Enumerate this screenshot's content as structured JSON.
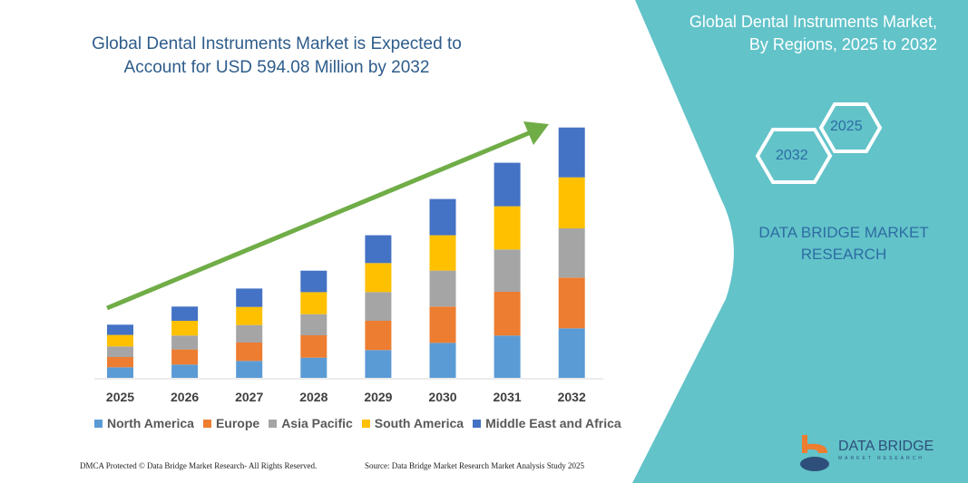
{
  "title": "Global Dental Instruments Market is Expected to Account for USD 594.08 Million by 2032",
  "side_panel": {
    "title_line1": "Global Dental Instruments Market,",
    "title_line2": "By Regions, 2025 to 2032",
    "hex_start": "2025",
    "hex_end": "2032",
    "brand_line1": "DATA BRIDGE MARKET",
    "brand_line2": "RESEARCH",
    "logo_text": "DATA BRIDGE",
    "logo_sub": "MARKET RESEARCH",
    "color": "#62c3c9"
  },
  "footer": {
    "left": "DMCA Protected © Data Bridge Market Research- All Rights Reserved.",
    "right": "Source: Data Bridge Market Research Market Analysis Study 2025"
  },
  "chart_data": {
    "type": "bar",
    "stacked": true,
    "trend_arrow": true,
    "categories": [
      "2025",
      "2026",
      "2027",
      "2028",
      "2029",
      "2030",
      "2031",
      "2032"
    ],
    "series": [
      {
        "name": "North America",
        "color": "#5b9bd5",
        "values": [
          11.7,
          14.7,
          18.7,
          22.3,
          30.7,
          38.7,
          46.7,
          54.7
        ]
      },
      {
        "name": "Europe",
        "color": "#ed7d31",
        "values": [
          11.3,
          16.7,
          20.3,
          24.7,
          32.3,
          40,
          48.3,
          56
        ]
      },
      {
        "name": "Asia Pacific",
        "color": "#a5a5a5",
        "values": [
          11.7,
          15.3,
          19.3,
          23.3,
          31.7,
          39.7,
          46.7,
          54.3
        ]
      },
      {
        "name": "South America",
        "color": "#ffc000",
        "values": [
          12.7,
          16.3,
          20,
          24.3,
          32,
          39,
          47.7,
          56.3
        ]
      },
      {
        "name": "Middle East and Africa",
        "color": "#4472c4",
        "values": [
          11.3,
          15.7,
          20.3,
          23.7,
          30.7,
          40,
          48,
          55
        ]
      }
    ],
    "legend_position": "bottom",
    "grid": false,
    "arrow_color": "#70ad47"
  }
}
